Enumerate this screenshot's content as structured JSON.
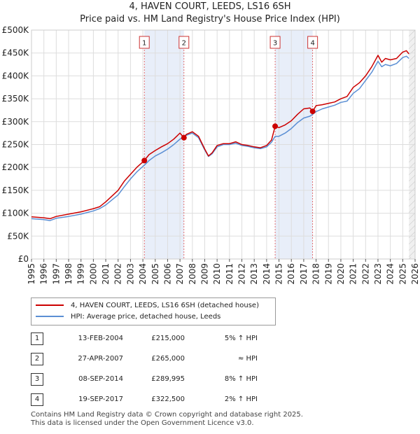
{
  "header": {
    "title": "4, HAVEN COURT, LEEDS, LS16 6SH",
    "subtitle": "Price paid vs. HM Land Registry's House Price Index (HPI)"
  },
  "chart_data": {
    "type": "line",
    "title": "4, HAVEN COURT, LEEDS, LS16 6SH",
    "subtitle": "Price paid vs. HM Land Registry's House Price Index (HPI)",
    "xlim": [
      1995,
      2026
    ],
    "ylim": [
      0,
      500000
    ],
    "yticks": [
      0,
      50000,
      100000,
      150000,
      200000,
      250000,
      300000,
      350000,
      400000,
      450000,
      500000
    ],
    "ytick_labels": [
      "£0",
      "£50K",
      "£100K",
      "£150K",
      "£200K",
      "£250K",
      "£300K",
      "£350K",
      "£400K",
      "£450K",
      "£500K"
    ],
    "xticks": [
      "1995",
      "1996",
      "1997",
      "1998",
      "1999",
      "2000",
      "2001",
      "2002",
      "2003",
      "2004",
      "2005",
      "2006",
      "2007",
      "2008",
      "2009",
      "2010",
      "2011",
      "2012",
      "2013",
      "2014",
      "2015",
      "2016",
      "2017",
      "2018",
      "2019",
      "2020",
      "2021",
      "2022",
      "2023",
      "2024",
      "2025",
      "2026"
    ],
    "grid": true,
    "colors": {
      "property": "#cc0000",
      "hpi": "#5b8fd4",
      "shade": "#e8eef9",
      "dashed": "#e05050"
    },
    "shaded_periods": [
      [
        2004.12,
        2007.32
      ],
      [
        2014.69,
        2017.72
      ]
    ],
    "future_start": 2025.5,
    "series": [
      {
        "name": "4, HAVEN COURT, LEEDS, LS16 6SH (detached house)",
        "color": "#cc0000",
        "points": [
          [
            1995.0,
            92000
          ],
          [
            1996.0,
            90000
          ],
          [
            1996.5,
            88000
          ],
          [
            1997.0,
            93000
          ],
          [
            1998.0,
            98000
          ],
          [
            1999.0,
            103000
          ],
          [
            2000.0,
            110000
          ],
          [
            2000.5,
            114000
          ],
          [
            2001.0,
            125000
          ],
          [
            2002.0,
            150000
          ],
          [
            2002.5,
            170000
          ],
          [
            2003.0,
            185000
          ],
          [
            2003.5,
            200000
          ],
          [
            2004.12,
            215000
          ],
          [
            2004.5,
            228000
          ],
          [
            2005.0,
            237000
          ],
          [
            2005.5,
            245000
          ],
          [
            2006.0,
            252000
          ],
          [
            2006.5,
            262000
          ],
          [
            2007.0,
            275000
          ],
          [
            2007.32,
            265000
          ],
          [
            2007.5,
            272000
          ],
          [
            2008.0,
            278000
          ],
          [
            2008.5,
            268000
          ],
          [
            2009.0,
            240000
          ],
          [
            2009.3,
            225000
          ],
          [
            2009.6,
            232000
          ],
          [
            2010.0,
            248000
          ],
          [
            2010.5,
            252000
          ],
          [
            2011.0,
            252000
          ],
          [
            2011.5,
            256000
          ],
          [
            2012.0,
            250000
          ],
          [
            2012.5,
            248000
          ],
          [
            2013.0,
            245000
          ],
          [
            2013.5,
            243000
          ],
          [
            2014.0,
            248000
          ],
          [
            2014.4,
            260000
          ],
          [
            2014.69,
            289995
          ],
          [
            2015.0,
            287000
          ],
          [
            2015.5,
            293000
          ],
          [
            2016.0,
            302000
          ],
          [
            2016.5,
            316000
          ],
          [
            2017.0,
            328000
          ],
          [
            2017.5,
            330000
          ],
          [
            2017.72,
            322500
          ],
          [
            2018.0,
            335000
          ],
          [
            2018.5,
            337000
          ],
          [
            2019.0,
            340000
          ],
          [
            2019.5,
            343000
          ],
          [
            2020.0,
            350000
          ],
          [
            2020.5,
            355000
          ],
          [
            2021.0,
            375000
          ],
          [
            2021.5,
            385000
          ],
          [
            2022.0,
            400000
          ],
          [
            2022.5,
            420000
          ],
          [
            2023.0,
            445000
          ],
          [
            2023.3,
            430000
          ],
          [
            2023.6,
            438000
          ],
          [
            2024.0,
            435000
          ],
          [
            2024.5,
            438000
          ],
          [
            2025.0,
            452000
          ],
          [
            2025.3,
            455000
          ],
          [
            2025.5,
            448000
          ]
        ]
      },
      {
        "name": "HPI: Average price, detached house, Leeds",
        "color": "#5b8fd4",
        "points": [
          [
            1995.0,
            88000
          ],
          [
            1996.0,
            86000
          ],
          [
            1996.5,
            84000
          ],
          [
            1997.0,
            89000
          ],
          [
            1998.0,
            93000
          ],
          [
            1999.0,
            98000
          ],
          [
            2000.0,
            105000
          ],
          [
            2000.5,
            110000
          ],
          [
            2001.0,
            118000
          ],
          [
            2002.0,
            140000
          ],
          [
            2002.5,
            158000
          ],
          [
            2003.0,
            175000
          ],
          [
            2003.5,
            190000
          ],
          [
            2004.12,
            205000
          ],
          [
            2004.5,
            215000
          ],
          [
            2005.0,
            225000
          ],
          [
            2005.5,
            232000
          ],
          [
            2006.0,
            240000
          ],
          [
            2006.5,
            250000
          ],
          [
            2007.0,
            262000
          ],
          [
            2007.32,
            266000
          ],
          [
            2007.5,
            270000
          ],
          [
            2008.0,
            275000
          ],
          [
            2008.5,
            265000
          ],
          [
            2009.0,
            238000
          ],
          [
            2009.3,
            224000
          ],
          [
            2009.6,
            230000
          ],
          [
            2010.0,
            245000
          ],
          [
            2010.5,
            250000
          ],
          [
            2011.0,
            250000
          ],
          [
            2011.5,
            253000
          ],
          [
            2012.0,
            248000
          ],
          [
            2012.5,
            246000
          ],
          [
            2013.0,
            243000
          ],
          [
            2013.5,
            241000
          ],
          [
            2014.0,
            245000
          ],
          [
            2014.4,
            255000
          ],
          [
            2014.69,
            268000
          ],
          [
            2015.0,
            268000
          ],
          [
            2015.5,
            275000
          ],
          [
            2016.0,
            285000
          ],
          [
            2016.5,
            298000
          ],
          [
            2017.0,
            308000
          ],
          [
            2017.5,
            312000
          ],
          [
            2017.72,
            316000
          ],
          [
            2018.0,
            322000
          ],
          [
            2018.5,
            328000
          ],
          [
            2019.0,
            332000
          ],
          [
            2019.5,
            336000
          ],
          [
            2020.0,
            342000
          ],
          [
            2020.5,
            345000
          ],
          [
            2021.0,
            362000
          ],
          [
            2021.5,
            372000
          ],
          [
            2022.0,
            390000
          ],
          [
            2022.5,
            408000
          ],
          [
            2023.0,
            432000
          ],
          [
            2023.3,
            420000
          ],
          [
            2023.6,
            425000
          ],
          [
            2024.0,
            422000
          ],
          [
            2024.5,
            427000
          ],
          [
            2025.0,
            440000
          ],
          [
            2025.3,
            443000
          ],
          [
            2025.5,
            438000
          ]
        ]
      }
    ],
    "sales": [
      {
        "label": "1",
        "x": 2004.12,
        "value": 215000
      },
      {
        "label": "2",
        "x": 2007.32,
        "value": 265000
      },
      {
        "label": "3",
        "x": 2014.69,
        "value": 289995
      },
      {
        "label": "4",
        "x": 2017.72,
        "value": 322500
      }
    ]
  },
  "legend": {
    "property_label": "4, HAVEN COURT, LEEDS, LS16 6SH (detached house)",
    "hpi_label": "HPI: Average price, detached house, Leeds"
  },
  "sales_table": [
    {
      "num": "1",
      "date": "13-FEB-2004",
      "price": "£215,000",
      "relation": "5% ↑ HPI"
    },
    {
      "num": "2",
      "date": "27-APR-2007",
      "price": "£265,000",
      "relation": "≈ HPI"
    },
    {
      "num": "3",
      "date": "08-SEP-2014",
      "price": "£289,995",
      "relation": "8% ↑ HPI"
    },
    {
      "num": "4",
      "date": "19-SEP-2017",
      "price": "£322,500",
      "relation": "2% ↑ HPI"
    }
  ],
  "footer": {
    "line1": "Contains HM Land Registry data © Crown copyright and database right 2025.",
    "line2": "This data is licensed under the Open Government Licence v3.0."
  }
}
